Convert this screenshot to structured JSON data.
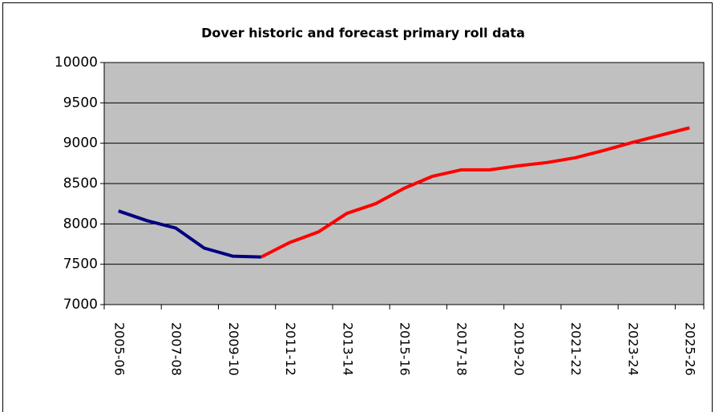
{
  "chart_data": {
    "type": "line",
    "title": "Dover historic and forecast primary roll data",
    "categories": [
      "2005-06",
      null,
      "2007-08",
      null,
      "2009-10",
      null,
      "2011-12",
      null,
      "2013-14",
      null,
      "2015-16",
      null,
      "2017-18",
      null,
      "2019-20",
      null,
      "2021-22",
      null,
      "2023-24",
      null,
      "2025-26"
    ],
    "series": [
      {
        "color": "#000080",
        "values": [
          8160,
          8040,
          7950,
          7700,
          7600,
          7590,
          null,
          null,
          null,
          null,
          null,
          null,
          null,
          null,
          null,
          null,
          null,
          null,
          null,
          null,
          null
        ]
      },
      {
        "color": "#ff0000",
        "values": [
          null,
          null,
          null,
          null,
          null,
          7590,
          7770,
          7900,
          8130,
          8250,
          8440,
          8590,
          8670,
          8670,
          8720,
          8760,
          8820,
          8910,
          9010,
          9100,
          9190
        ]
      }
    ],
    "ylim": [
      7000,
      10000
    ],
    "yticks": [
      7000,
      7500,
      8000,
      8500,
      9000,
      9500,
      10000
    ],
    "grid": true
  }
}
